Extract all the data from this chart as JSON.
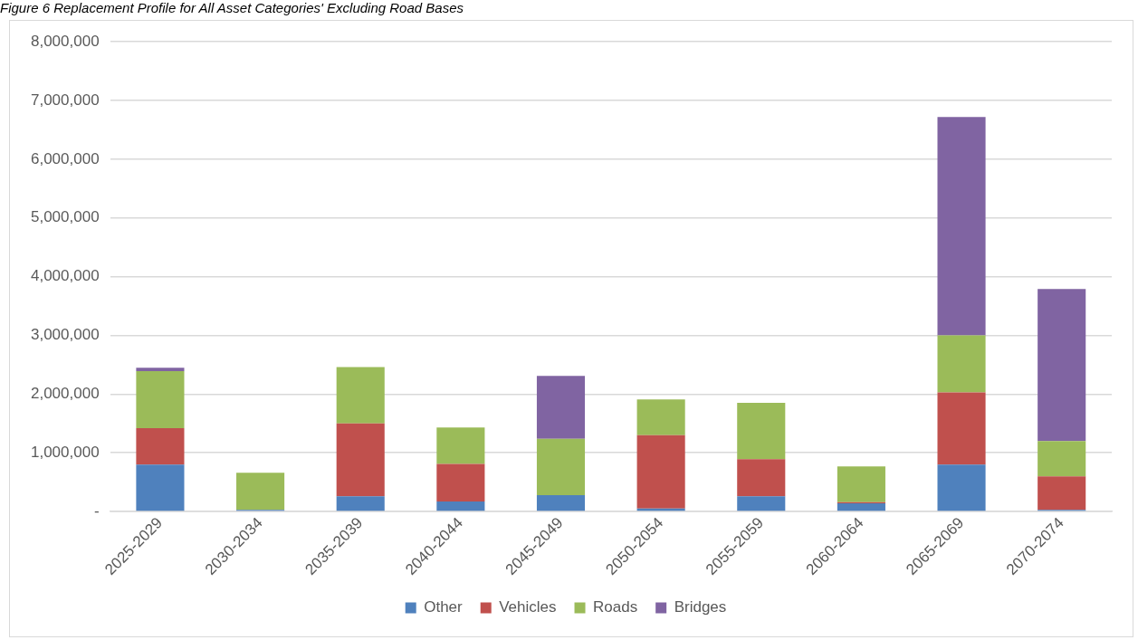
{
  "chart_data": {
    "type": "bar",
    "title": "Figure 6 Replacement Profile for All Asset Categories' Excluding Road Bases",
    "stacked": true,
    "categories": [
      "2025-2029",
      "2030-2034",
      "2035-2039",
      "2040-2044",
      "2045-2049",
      "2050-2054",
      "2055-2059",
      "2060-2064",
      "2065-2069",
      "2070-2074"
    ],
    "series": [
      {
        "name": "Other",
        "color": "#4f81bd",
        "values": [
          800000,
          30000,
          260000,
          170000,
          280000,
          50000,
          260000,
          140000,
          800000,
          30000
        ]
      },
      {
        "name": "Vehicles",
        "color": "#c0504d",
        "values": [
          620000,
          0,
          1240000,
          640000,
          0,
          1250000,
          630000,
          20000,
          1230000,
          570000
        ]
      },
      {
        "name": "Roads",
        "color": "#9bbb59",
        "values": [
          970000,
          630000,
          960000,
          620000,
          960000,
          610000,
          960000,
          610000,
          970000,
          600000
        ]
      },
      {
        "name": "Bridges",
        "color": "#8064a2",
        "values": [
          60000,
          0,
          0,
          0,
          1070000,
          0,
          0,
          0,
          3720000,
          2590000
        ]
      }
    ],
    "ylim": [
      0,
      8000000
    ],
    "yticks": [
      {
        "value": 0,
        "label": "-"
      },
      {
        "value": 1000000,
        "label": "1,000,000"
      },
      {
        "value": 2000000,
        "label": "2,000,000"
      },
      {
        "value": 3000000,
        "label": "3,000,000"
      },
      {
        "value": 4000000,
        "label": "4,000,000"
      },
      {
        "value": 5000000,
        "label": "5,000,000"
      },
      {
        "value": 6000000,
        "label": "6,000,000"
      },
      {
        "value": 7000000,
        "label": "7,000,000"
      },
      {
        "value": 8000000,
        "label": "8,000,000"
      }
    ],
    "grid": "y",
    "legend": "bottom"
  }
}
